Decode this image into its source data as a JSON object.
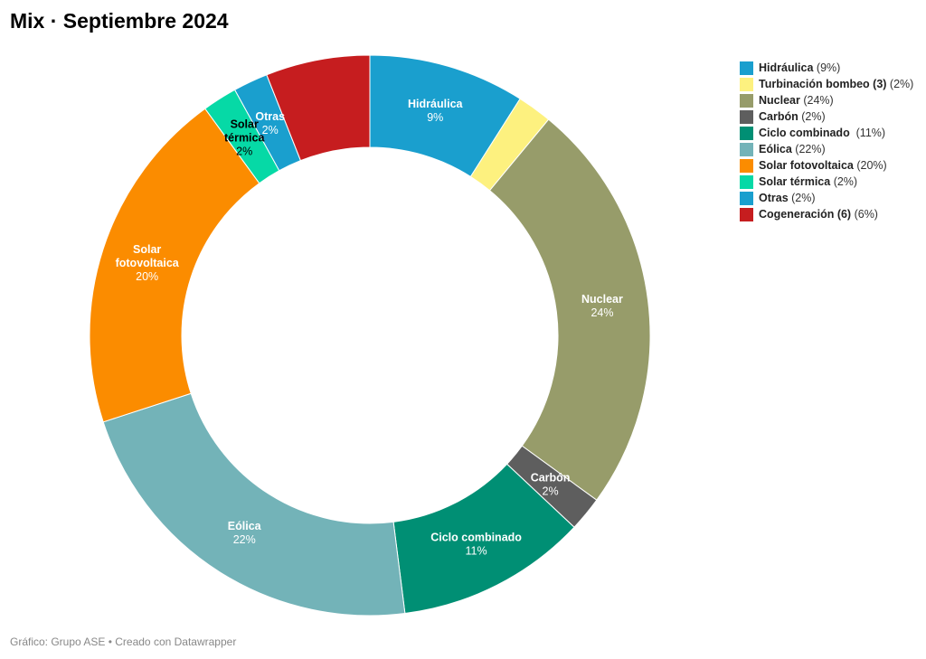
{
  "title": "Mix · Septiembre 2024",
  "footer": "Gráfico: Grupo ASE • Creado con Datawrapper",
  "chart_data": {
    "type": "pie",
    "variant": "donut",
    "title": "Mix · Septiembre 2024",
    "legend_position": "top-right",
    "start": "top",
    "direction": "clockwise",
    "slices": [
      {
        "name": "Hidráulica",
        "value": 9,
        "pct_label": "9%",
        "legend_name": "Hidráulica",
        "legend_pct": " (9%)",
        "color": "#1a9fce",
        "label_lines": [
          "Hidráulica"
        ],
        "label_color": "#ffffff"
      },
      {
        "name": "Turbinación bombeo (3)",
        "value": 2,
        "pct_label": "2%",
        "legend_name": "Turbinación bombeo (3)",
        "legend_pct": " (2%)",
        "color": "#fdf17f",
        "label_lines": null,
        "label_color": "#000000"
      },
      {
        "name": "Nuclear",
        "value": 24,
        "pct_label": "24%",
        "legend_name": "Nuclear",
        "legend_pct": " (24%)",
        "color": "#979c6a",
        "label_lines": [
          "Nuclear"
        ],
        "label_color": "#ffffff"
      },
      {
        "name": "Carbón",
        "value": 2,
        "pct_label": "2%",
        "legend_name": "Carbón",
        "legend_pct": " (2%)",
        "color": "#5e5e5e",
        "label_lines": [
          "Carbón"
        ],
        "label_color": "#ffffff"
      },
      {
        "name": "Ciclo combinado",
        "value": 11,
        "pct_label": "11%",
        "legend_name": "Ciclo combinado",
        "legend_pct": "  (11%)",
        "color": "#008f74",
        "label_lines": [
          "Ciclo combinado"
        ],
        "label_color": "#ffffff"
      },
      {
        "name": "Eólica",
        "value": 22,
        "pct_label": "22%",
        "legend_name": "Eólica",
        "legend_pct": " (22%)",
        "color": "#73b3b8",
        "label_lines": [
          "Eólica"
        ],
        "label_color": "#ffffff"
      },
      {
        "name": "Solar fotovoltaica",
        "value": 20,
        "pct_label": "20%",
        "legend_name": "Solar fotovoltaica",
        "legend_pct": " (20%)",
        "color": "#fb8c00",
        "label_lines": [
          "Solar",
          "fotovoltaica"
        ],
        "label_color": "#ffffff"
      },
      {
        "name": "Solar térmica",
        "value": 2,
        "pct_label": "2%",
        "legend_name": "Solar térmica",
        "legend_pct": " (2%)",
        "color": "#06d9a6",
        "label_lines": [
          "Solar",
          "térmica"
        ],
        "label_color": "#000000"
      },
      {
        "name": "Otras",
        "value": 2,
        "pct_label": "2%",
        "legend_name": "Otras",
        "legend_pct": " (2%)",
        "color": "#1a9fce",
        "label_lines": [
          "Otras"
        ],
        "label_color": "#ffffff"
      },
      {
        "name": "Cogeneración (6)",
        "value": 6,
        "pct_label": "6%",
        "legend_name": "Cogeneración (6)",
        "legend_pct": " (6%)",
        "color": "#c61d1f",
        "label_lines": null,
        "label_color": "#ffffff"
      }
    ]
  }
}
